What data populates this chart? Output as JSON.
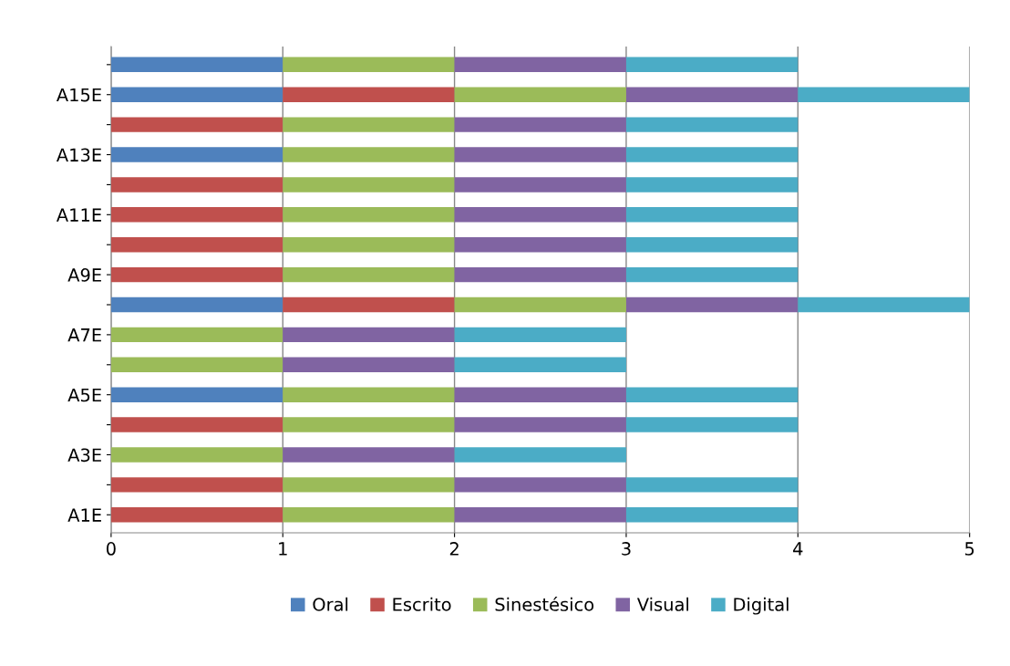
{
  "chart_data": {
    "type": "bar",
    "orientation": "horizontal",
    "stacked": true,
    "categories": [
      null,
      "A15E",
      null,
      "A13E",
      null,
      "A11E",
      null,
      "A9E",
      null,
      "A7E",
      null,
      "A5E",
      null,
      "A3E",
      null,
      "A1E"
    ],
    "series": [
      {
        "name": "Oral",
        "color": "#4f81bd",
        "values": [
          1,
          1,
          0,
          1,
          0,
          0,
          0,
          0,
          1,
          0,
          0,
          1,
          0,
          0,
          0,
          0
        ]
      },
      {
        "name": "Escrito",
        "color": "#c0504d",
        "values": [
          0,
          1,
          1,
          0,
          1,
          1,
          1,
          1,
          1,
          0,
          0,
          0,
          1,
          0,
          1,
          1
        ]
      },
      {
        "name": "Sinestésico",
        "color": "#9bbb59",
        "values": [
          1,
          1,
          1,
          1,
          1,
          1,
          1,
          1,
          1,
          1,
          1,
          1,
          1,
          1,
          1,
          1
        ]
      },
      {
        "name": "Visual",
        "color": "#8064a2",
        "values": [
          1,
          1,
          1,
          1,
          1,
          1,
          1,
          1,
          1,
          1,
          1,
          1,
          1,
          1,
          1,
          1
        ]
      },
      {
        "name": "Digital",
        "color": "#4bacc6",
        "values": [
          1,
          1,
          1,
          1,
          1,
          1,
          1,
          1,
          1,
          1,
          1,
          1,
          1,
          1,
          1,
          1
        ]
      }
    ],
    "xlim": [
      0,
      5
    ],
    "xticks": [
      0,
      1,
      2,
      3,
      4,
      5
    ],
    "grid": "x",
    "legend": "bottom"
  }
}
